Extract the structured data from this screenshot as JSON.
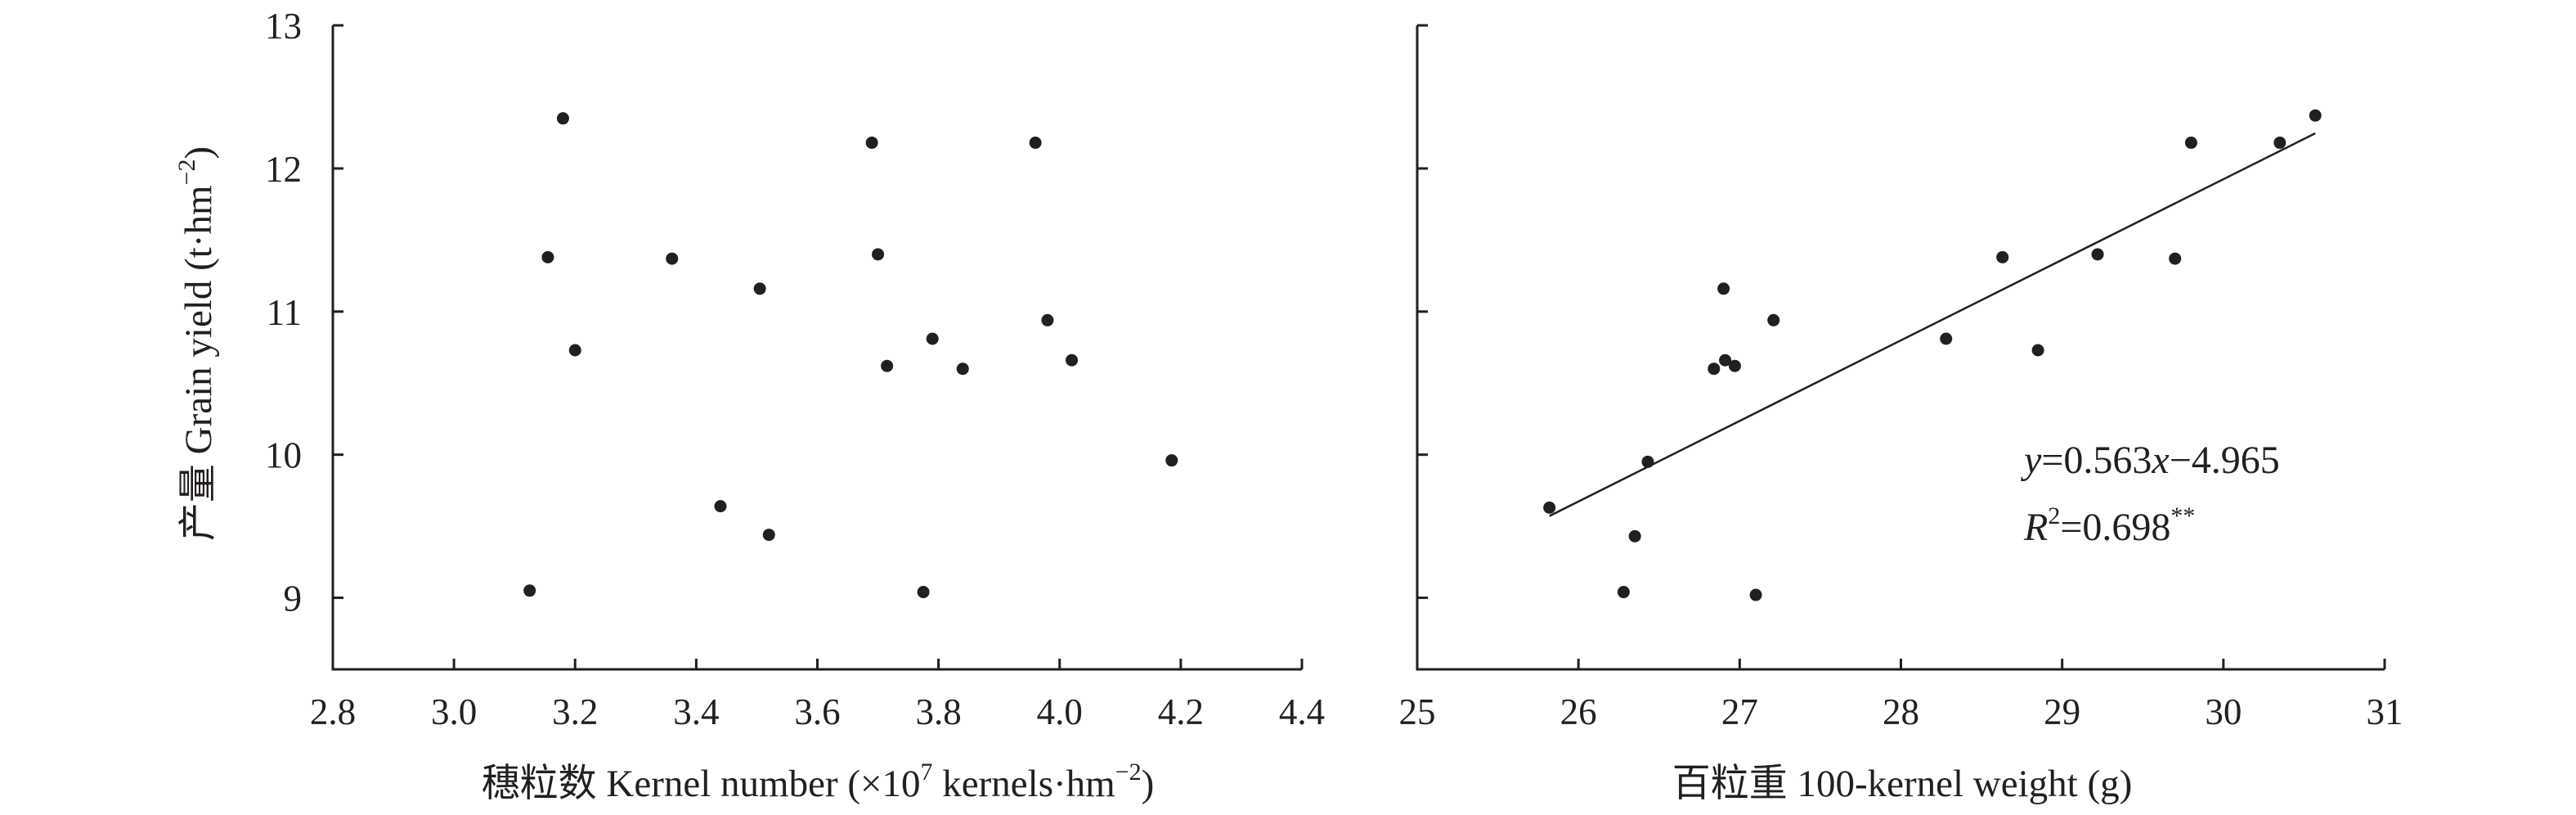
{
  "chart_data": [
    {
      "type": "scatter",
      "xlabel": "穗粒数 Kernel number (×10⁷ kernels·hm⁻²)",
      "xlabel_parts": {
        "main": "穗粒数 Kernel number (×10",
        "exp": "7",
        "mid": " kernels·hm",
        "exp2": "−2",
        "end": ")"
      },
      "ylabel": "产量 Grain yield (t·hm⁻²)",
      "ylabel_parts": {
        "main": "产量 Grain yield (t·hm",
        "exp": "−2",
        "end": ")"
      },
      "xlim": [
        2.8,
        4.4
      ],
      "ylim": [
        8.5,
        13
      ],
      "xticks": [
        "2.8",
        "3.0",
        "3.2",
        "3.4",
        "3.6",
        "3.8",
        "4.0",
        "4.2",
        "4.4"
      ],
      "yticks": [
        "9",
        "10",
        "11",
        "12",
        "13"
      ],
      "points": [
        {
          "x": 3.18,
          "y": 12.35
        },
        {
          "x": 3.69,
          "y": 12.18
        },
        {
          "x": 3.96,
          "y": 12.18
        },
        {
          "x": 3.155,
          "y": 11.38
        },
        {
          "x": 3.36,
          "y": 11.37
        },
        {
          "x": 3.7,
          "y": 11.4
        },
        {
          "x": 3.505,
          "y": 11.16
        },
        {
          "x": 3.98,
          "y": 10.94
        },
        {
          "x": 3.79,
          "y": 10.81
        },
        {
          "x": 3.2,
          "y": 10.73
        },
        {
          "x": 4.02,
          "y": 10.66
        },
        {
          "x": 3.715,
          "y": 10.62
        },
        {
          "x": 3.84,
          "y": 10.6
        },
        {
          "x": 4.185,
          "y": 9.96
        },
        {
          "x": 3.44,
          "y": 9.64
        },
        {
          "x": 3.52,
          "y": 9.44
        },
        {
          "x": 3.125,
          "y": 9.05
        },
        {
          "x": 3.775,
          "y": 9.04
        }
      ]
    },
    {
      "type": "scatter",
      "xlabel": "百粒重 100-kernel weight (g)",
      "xlim": [
        25,
        31
      ],
      "ylim": [
        8.5,
        13
      ],
      "xticks": [
        "25",
        "26",
        "27",
        "28",
        "29",
        "30",
        "31"
      ],
      "points": [
        {
          "x": 30.57,
          "y": 12.37
        },
        {
          "x": 29.8,
          "y": 12.18
        },
        {
          "x": 30.35,
          "y": 12.18
        },
        {
          "x": 28.63,
          "y": 11.38
        },
        {
          "x": 29.22,
          "y": 11.4
        },
        {
          "x": 29.7,
          "y": 11.37
        },
        {
          "x": 26.9,
          "y": 11.16
        },
        {
          "x": 27.21,
          "y": 10.94
        },
        {
          "x": 28.28,
          "y": 10.81
        },
        {
          "x": 28.85,
          "y": 10.73
        },
        {
          "x": 26.91,
          "y": 10.66
        },
        {
          "x": 26.97,
          "y": 10.62
        },
        {
          "x": 26.84,
          "y": 10.6
        },
        {
          "x": 26.43,
          "y": 9.95
        },
        {
          "x": 25.82,
          "y": 9.63
        },
        {
          "x": 26.35,
          "y": 9.43
        },
        {
          "x": 26.28,
          "y": 9.04
        },
        {
          "x": 27.1,
          "y": 9.02
        }
      ],
      "fit": {
        "slope": 0.563,
        "intercept": -4.965,
        "x_range": [
          25.82,
          30.57
        ]
      },
      "equation": {
        "y": "y",
        "eq": "=0.563",
        "x": "x",
        "rest": "−4.965"
      },
      "r_squared": {
        "r": "R",
        "exp": "2",
        "value": "=0.698",
        "sig": "**"
      }
    }
  ]
}
